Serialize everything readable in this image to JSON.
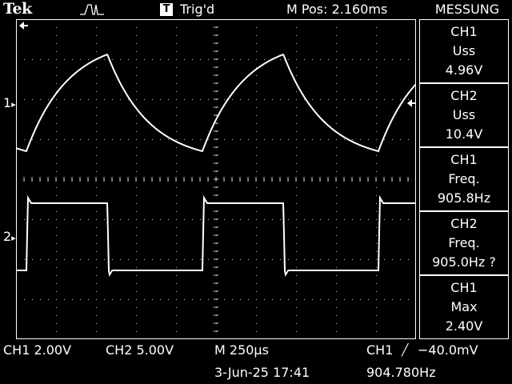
{
  "header": {
    "brand": "Tek",
    "trigger_badge": "T",
    "trigger_status": "Trig'd",
    "horizontal_position": "M Pos: 2.160ms",
    "menu_title": "MESSUNG"
  },
  "markers": {
    "ch1": "1",
    "ch2": "2",
    "arrow_right": "▸",
    "trigger_arrow": "◂"
  },
  "measurements": [
    {
      "channel": "CH1",
      "type": "Uss",
      "value": "4.96V"
    },
    {
      "channel": "CH2",
      "type": "Uss",
      "value": "10.4V"
    },
    {
      "channel": "CH1",
      "type": "Freq.",
      "value": "905.8Hz"
    },
    {
      "channel": "CH2",
      "type": "Freq.",
      "value": "905.0Hz ?"
    },
    {
      "channel": "CH1",
      "type": "Max",
      "value": "2.40V"
    }
  ],
  "footer": {
    "ch1_scale": "CH1  2.00V",
    "ch2_scale": "CH2  5.00V",
    "time_scale": "M 250μs",
    "trigger_source": "CH1",
    "trigger_slope": "╱",
    "trigger_level": "−40.0mV",
    "datetime": "3-Jun-25 17:41",
    "frequency": "904.780Hz"
  },
  "colors": {
    "background": "#000000",
    "trace": "#ffffff",
    "graticule": "#ffffff"
  }
}
